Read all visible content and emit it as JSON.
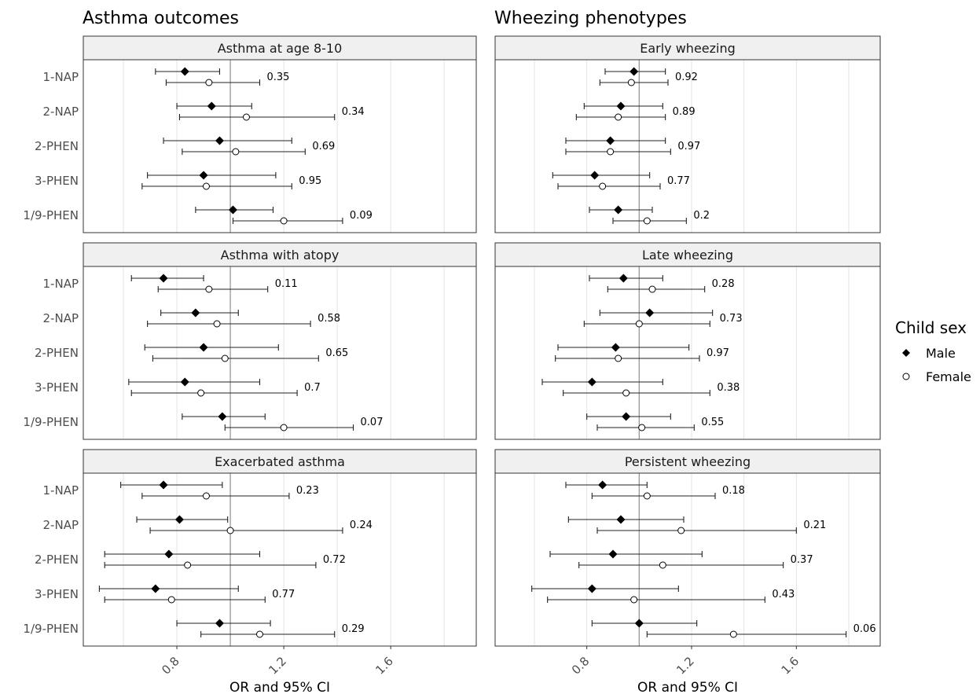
{
  "chart_data": {
    "type": "forest",
    "column_titles": [
      "Asthma outcomes",
      "Wheezing phenotypes"
    ],
    "categories": [
      "1-NAP",
      "2-NAP",
      "2-PHEN",
      "3-PHEN",
      "1/9-PHEN"
    ],
    "xlabel": "OR and 95% CI",
    "xticks": [
      "0.8",
      "1.2",
      "1.6"
    ],
    "xtick_values": [
      0.8,
      1.2,
      1.6
    ],
    "xlim": [
      0.45,
      1.92
    ],
    "reference_line": 1.0,
    "grid": true,
    "legend": {
      "title": "Child sex",
      "position": "right",
      "items": [
        {
          "name": "Male",
          "marker": "filled-diamond",
          "color": "#000000"
        },
        {
          "name": "Female",
          "marker": "open-circle",
          "color": "#000000"
        }
      ]
    },
    "panels": [
      {
        "title": "Asthma at age 8-10",
        "rows": [
          {
            "cat": "1-NAP",
            "male": [
              0.83,
              0.72,
              0.96
            ],
            "female": [
              0.92,
              0.76,
              1.11
            ],
            "p": "0.35"
          },
          {
            "cat": "2-NAP",
            "male": [
              0.93,
              0.8,
              1.08
            ],
            "female": [
              1.06,
              0.81,
              1.39
            ],
            "p": "0.34"
          },
          {
            "cat": "2-PHEN",
            "male": [
              0.96,
              0.75,
              1.23
            ],
            "female": [
              1.02,
              0.82,
              1.28
            ],
            "p": "0.69"
          },
          {
            "cat": "3-PHEN",
            "male": [
              0.9,
              0.69,
              1.17
            ],
            "female": [
              0.91,
              0.67,
              1.23
            ],
            "p": "0.95"
          },
          {
            "cat": "1/9-PHEN",
            "male": [
              1.01,
              0.87,
              1.16
            ],
            "female": [
              1.2,
              1.01,
              1.42
            ],
            "p": "0.09"
          }
        ]
      },
      {
        "title": "Early wheezing",
        "rows": [
          {
            "cat": "1-NAP",
            "male": [
              0.98,
              0.87,
              1.1
            ],
            "female": [
              0.97,
              0.85,
              1.11
            ],
            "p": "0.92"
          },
          {
            "cat": "2-NAP",
            "male": [
              0.93,
              0.79,
              1.09
            ],
            "female": [
              0.92,
              0.76,
              1.1
            ],
            "p": "0.89"
          },
          {
            "cat": "2-PHEN",
            "male": [
              0.89,
              0.72,
              1.1
            ],
            "female": [
              0.89,
              0.72,
              1.12
            ],
            "p": "0.97"
          },
          {
            "cat": "3-PHEN",
            "male": [
              0.83,
              0.67,
              1.04
            ],
            "female": [
              0.86,
              0.69,
              1.08
            ],
            "p": "0.77"
          },
          {
            "cat": "1/9-PHEN",
            "male": [
              0.92,
              0.81,
              1.05
            ],
            "female": [
              1.03,
              0.9,
              1.18
            ],
            "p": "0.2"
          }
        ]
      },
      {
        "title": "Asthma with atopy",
        "rows": [
          {
            "cat": "1-NAP",
            "male": [
              0.75,
              0.63,
              0.9
            ],
            "female": [
              0.92,
              0.73,
              1.14
            ],
            "p": "0.11"
          },
          {
            "cat": "2-NAP",
            "male": [
              0.87,
              0.74,
              1.03
            ],
            "female": [
              0.95,
              0.69,
              1.3
            ],
            "p": "0.58"
          },
          {
            "cat": "2-PHEN",
            "male": [
              0.9,
              0.68,
              1.18
            ],
            "female": [
              0.98,
              0.71,
              1.33
            ],
            "p": "0.65"
          },
          {
            "cat": "3-PHEN",
            "male": [
              0.83,
              0.62,
              1.11
            ],
            "female": [
              0.89,
              0.63,
              1.25
            ],
            "p": "0.7"
          },
          {
            "cat": "1/9-PHEN",
            "male": [
              0.97,
              0.82,
              1.13
            ],
            "female": [
              1.2,
              0.98,
              1.46
            ],
            "p": "0.07"
          }
        ]
      },
      {
        "title": "Late wheezing",
        "rows": [
          {
            "cat": "1-NAP",
            "male": [
              0.94,
              0.81,
              1.09
            ],
            "female": [
              1.05,
              0.88,
              1.25
            ],
            "p": "0.28"
          },
          {
            "cat": "2-NAP",
            "male": [
              1.04,
              0.85,
              1.28
            ],
            "female": [
              1.0,
              0.79,
              1.27
            ],
            "p": "0.73"
          },
          {
            "cat": "2-PHEN",
            "male": [
              0.91,
              0.69,
              1.19
            ],
            "female": [
              0.92,
              0.68,
              1.23
            ],
            "p": "0.97"
          },
          {
            "cat": "3-PHEN",
            "male": [
              0.82,
              0.63,
              1.09
            ],
            "female": [
              0.95,
              0.71,
              1.27
            ],
            "p": "0.38"
          },
          {
            "cat": "1/9-PHEN",
            "male": [
              0.95,
              0.8,
              1.12
            ],
            "female": [
              1.01,
              0.84,
              1.21
            ],
            "p": "0.55"
          }
        ]
      },
      {
        "title": "Exacerbated asthma",
        "rows": [
          {
            "cat": "1-NAP",
            "male": [
              0.75,
              0.59,
              0.97
            ],
            "female": [
              0.91,
              0.67,
              1.22
            ],
            "p": "0.23"
          },
          {
            "cat": "2-NAP",
            "male": [
              0.81,
              0.65,
              0.99
            ],
            "female": [
              1.0,
              0.7,
              1.42
            ],
            "p": "0.24"
          },
          {
            "cat": "2-PHEN",
            "male": [
              0.77,
              0.53,
              1.11
            ],
            "female": [
              0.84,
              0.53,
              1.32
            ],
            "p": "0.72"
          },
          {
            "cat": "3-PHEN",
            "male": [
              0.72,
              0.51,
              1.03
            ],
            "female": [
              0.78,
              0.53,
              1.13
            ],
            "p": "0.77"
          },
          {
            "cat": "1/9-PHEN",
            "male": [
              0.96,
              0.8,
              1.15
            ],
            "female": [
              1.11,
              0.89,
              1.39
            ],
            "p": "0.29"
          }
        ]
      },
      {
        "title": "Persistent wheezing",
        "rows": [
          {
            "cat": "1-NAP",
            "male": [
              0.86,
              0.72,
              1.03
            ],
            "female": [
              1.03,
              0.82,
              1.29
            ],
            "p": "0.18"
          },
          {
            "cat": "2-NAP",
            "male": [
              0.93,
              0.73,
              1.17
            ],
            "female": [
              1.16,
              0.84,
              1.6
            ],
            "p": "0.21"
          },
          {
            "cat": "2-PHEN",
            "male": [
              0.9,
              0.66,
              1.24
            ],
            "female": [
              1.09,
              0.77,
              1.55
            ],
            "p": "0.37"
          },
          {
            "cat": "3-PHEN",
            "male": [
              0.82,
              0.59,
              1.15
            ],
            "female": [
              0.98,
              0.65,
              1.48
            ],
            "p": "0.43"
          },
          {
            "cat": "1/9-PHEN",
            "male": [
              1.0,
              0.82,
              1.22
            ],
            "female": [
              1.36,
              1.03,
              1.79
            ],
            "p": "0.06"
          }
        ]
      }
    ]
  }
}
